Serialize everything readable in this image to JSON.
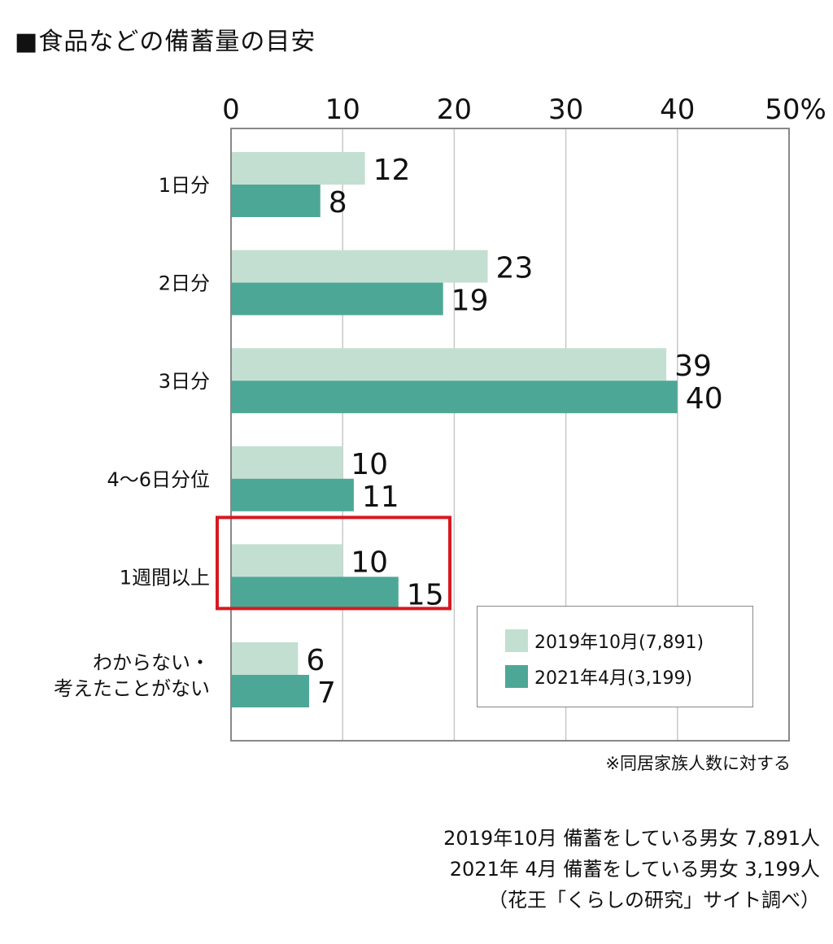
{
  "title": "■食品などの備蓄量の目安",
  "note": "※同居家族人数に対する",
  "source_lines": [
    "2019年10月 備蓄をしている男女 7,891人",
    "2021年 4月 備蓄をしている男女 3,199人",
    "（花王「くらしの研究」サイト調べ）"
  ],
  "colors": {
    "series1": "#c3dfd1",
    "series2": "#4da796",
    "highlight": "#d71920",
    "grid": "#c8c8c8",
    "axis": "#888888"
  },
  "chart_data": {
    "type": "bar",
    "orientation": "horizontal",
    "x_ticks": [
      "0",
      "10",
      "20",
      "30",
      "40",
      "50%"
    ],
    "xlim": [
      0,
      50
    ],
    "grid": true,
    "legend_position": "bottom-right",
    "categories": [
      [
        "1日分"
      ],
      [
        "2日分"
      ],
      [
        "3日分"
      ],
      [
        "4〜6日分位"
      ],
      [
        "1週間以上"
      ],
      [
        "わからない・",
        "考えたことがない"
      ]
    ],
    "highlighted_category_index": 4,
    "series": [
      {
        "name": "2019年10月(7,891)",
        "values": [
          12,
          23,
          39,
          10,
          10,
          6
        ]
      },
      {
        "name": "2021年4月(3,199)",
        "values": [
          8,
          19,
          40,
          11,
          15,
          7
        ]
      }
    ]
  }
}
